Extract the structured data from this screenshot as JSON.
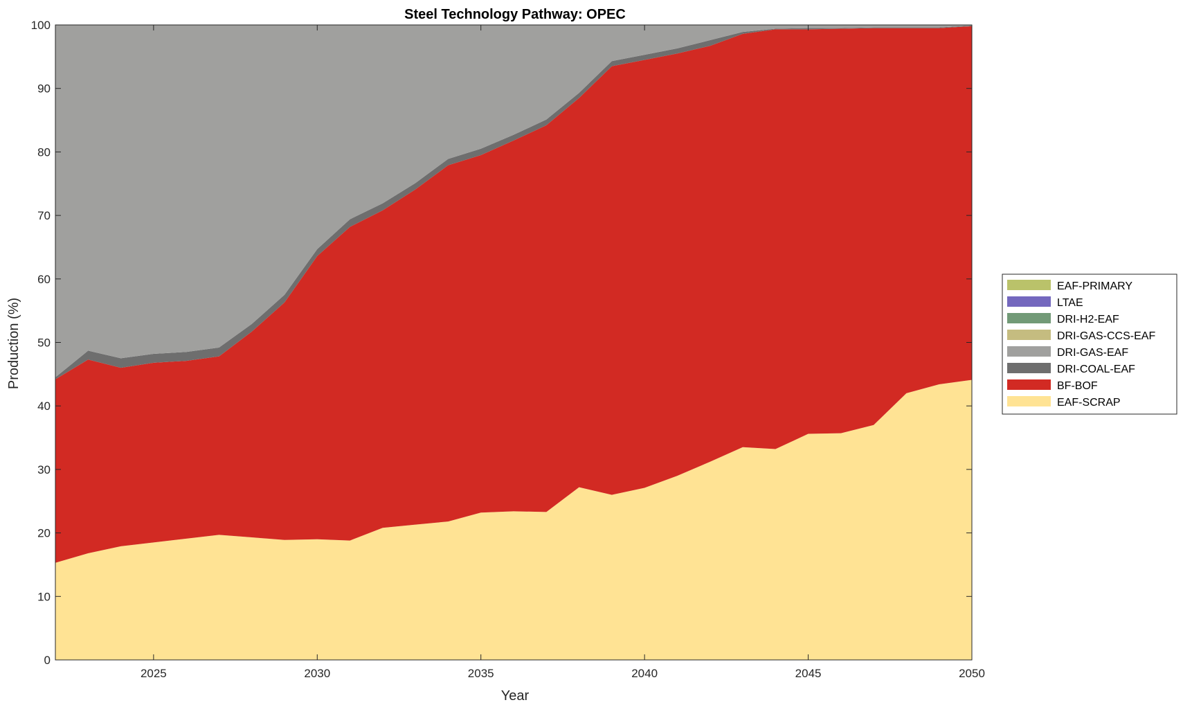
{
  "chart_data": {
    "type": "area",
    "stacked": true,
    "title": "Steel Technology Pathway: OPEC",
    "xlabel": "Year",
    "ylabel": "Production (%)",
    "xlim": [
      2022,
      2050
    ],
    "ylim": [
      0,
      100
    ],
    "xticks": [
      2025,
      2030,
      2035,
      2040,
      2045,
      2050
    ],
    "yticks": [
      0,
      10,
      20,
      30,
      40,
      50,
      60,
      70,
      80,
      90,
      100
    ],
    "grid": false,
    "legend_position": "right",
    "x": [
      2022,
      2023,
      2024,
      2025,
      2026,
      2027,
      2028,
      2029,
      2030,
      2031,
      2032,
      2033,
      2034,
      2035,
      2036,
      2037,
      2038,
      2039,
      2040,
      2041,
      2042,
      2043,
      2044,
      2045,
      2046,
      2047,
      2048,
      2049,
      2050
    ],
    "series": [
      {
        "name": "EAF-SCRAP",
        "color": "#FFE394",
        "values": [
          15.3,
          16.8,
          17.9,
          18.5,
          19.1,
          19.7,
          19.3,
          18.9,
          19.0,
          18.8,
          20.8,
          21.3,
          21.8,
          23.2,
          23.4,
          23.3,
          27.2,
          26.0,
          27.1,
          29.0,
          31.2,
          33.5,
          33.2,
          35.6,
          35.7,
          37.0,
          42.0,
          43.4,
          44.1
        ]
      },
      {
        "name": "BF-BOF",
        "color": "#D22A23",
        "values": [
          28.9,
          30.5,
          28.1,
          28.3,
          28.0,
          28.1,
          32.4,
          37.4,
          44.6,
          49.4,
          50.0,
          52.8,
          56.1,
          56.3,
          58.4,
          60.9,
          61.3,
          67.5,
          67.4,
          66.5,
          65.5,
          65.1,
          66.1,
          63.7,
          63.7,
          62.5,
          57.5,
          56.1,
          55.7
        ]
      },
      {
        "name": "DRI-COAL-EAF",
        "color": "#6E6E6E",
        "values": [
          0.3,
          1.4,
          1.5,
          1.4,
          1.4,
          1.4,
          1.2,
          1.2,
          1.1,
          1.2,
          1.1,
          1.0,
          1.0,
          1.0,
          0.9,
          0.9,
          0.8,
          0.8,
          0.8,
          0.8,
          0.9,
          0.3,
          0.1,
          0.2,
          0.1,
          0.1,
          0.1,
          0.1,
          0.1
        ]
      },
      {
        "name": "DRI-GAS-EAF",
        "color": "#A0A09E",
        "values": [
          55.5,
          51.3,
          52.5,
          51.8,
          51.5,
          50.8,
          47.1,
          42.5,
          35.3,
          30.6,
          28.1,
          24.9,
          21.1,
          19.5,
          17.3,
          14.9,
          10.7,
          5.7,
          4.7,
          3.7,
          2.4,
          1.1,
          0.6,
          0.5,
          0.5,
          0.4,
          0.4,
          0.4,
          0.1
        ]
      },
      {
        "name": "DRI-GAS-CCS-EAF",
        "color": "#C5BC80",
        "values": [
          0,
          0,
          0,
          0,
          0,
          0,
          0,
          0,
          0,
          0,
          0,
          0,
          0,
          0,
          0,
          0,
          0,
          0,
          0,
          0,
          0,
          0,
          0,
          0,
          0,
          0,
          0,
          0,
          0
        ]
      },
      {
        "name": "DRI-H2-EAF",
        "color": "#729A77",
        "values": [
          0,
          0,
          0,
          0,
          0,
          0,
          0,
          0,
          0,
          0,
          0,
          0,
          0,
          0,
          0,
          0,
          0,
          0,
          0,
          0,
          0,
          0,
          0,
          0,
          0,
          0,
          0,
          0,
          0
        ]
      },
      {
        "name": "LTAE",
        "color": "#7468BE",
        "values": [
          0,
          0,
          0,
          0,
          0,
          0,
          0,
          0,
          0,
          0,
          0,
          0,
          0,
          0,
          0,
          0,
          0,
          0,
          0,
          0,
          0,
          0,
          0,
          0,
          0,
          0,
          0,
          0,
          0
        ]
      },
      {
        "name": "EAF-PRIMARY",
        "color": "#BAC26A",
        "values": [
          0,
          0,
          0,
          0,
          0,
          0,
          0,
          0,
          0,
          0,
          0,
          0,
          0,
          0,
          0,
          0,
          0,
          0,
          0,
          0,
          0,
          0,
          0,
          0,
          0,
          0,
          0,
          0,
          0
        ]
      }
    ],
    "legend_order": [
      "EAF-PRIMARY",
      "LTAE",
      "DRI-H2-EAF",
      "DRI-GAS-CCS-EAF",
      "DRI-GAS-EAF",
      "DRI-COAL-EAF",
      "BF-BOF",
      "EAF-SCRAP"
    ]
  }
}
